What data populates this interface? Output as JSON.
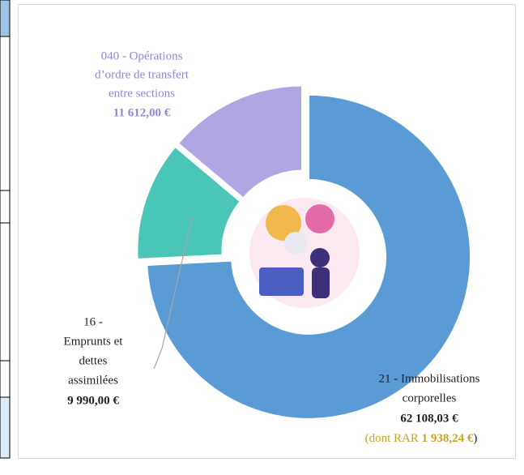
{
  "chart_data": {
    "type": "donut",
    "categories": [
      [
        "21 -  Immobilisations",
        "corporelles"
      ],
      [
        "16 -",
        "Emprunts et",
        "dettes",
        "assimilées"
      ],
      [
        "040 - Opérations",
        "d’ordre de transfert",
        "entre sections"
      ]
    ],
    "values": [
      62108.03,
      9990.0,
      11612.0
    ],
    "value_labels": [
      "62 108,03 €",
      "9 990,00 €",
      "11 612,00 €"
    ],
    "colors": [
      "#5b9bd5",
      "#4ac6b7",
      "#b0a6e3"
    ],
    "label_colors": [
      "#1f1f1f",
      "#1f1f1f",
      "#8f86d6"
    ],
    "rar_prefix": "(dont RAR",
    "rar_value": "1 938,24 €",
    "rar_suffix": ")",
    "rar_color": "#c9a227"
  }
}
